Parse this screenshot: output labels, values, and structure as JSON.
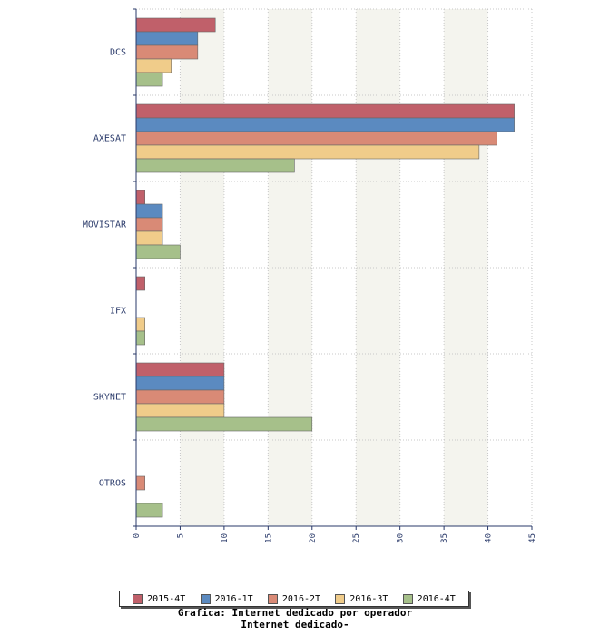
{
  "chart_data": {
    "type": "bar",
    "orientation": "horizontal",
    "categories": [
      "DCS",
      "AXESAT",
      "MOVISTAR",
      "IFX",
      "SKYNET",
      "OTROS"
    ],
    "series": [
      {
        "name": "2015-4T",
        "color": "#c0606a",
        "values": [
          9,
          43,
          1,
          1,
          10,
          null
        ]
      },
      {
        "name": "2016-1T",
        "color": "#5b8ac0",
        "values": [
          7,
          43,
          3,
          null,
          10,
          null
        ]
      },
      {
        "name": "2016-2T",
        "color": "#d98a76",
        "values": [
          7,
          41,
          3,
          null,
          10,
          1
        ]
      },
      {
        "name": "2016-3T",
        "color": "#f0cc8a",
        "values": [
          4,
          39,
          3,
          1,
          10,
          null
        ]
      },
      {
        "name": "2016-4T",
        "color": "#a6c08a",
        "values": [
          3,
          18,
          5,
          1,
          20,
          3
        ]
      }
    ],
    "xlim": [
      0,
      45
    ],
    "xticks": [
      0,
      5,
      10,
      15,
      20,
      25,
      30,
      35,
      40,
      45
    ],
    "grid": true,
    "legend_position": "bottom",
    "caption": [
      "Grafica: Internet dedicado por operador",
      "Internet dedicado-"
    ]
  }
}
